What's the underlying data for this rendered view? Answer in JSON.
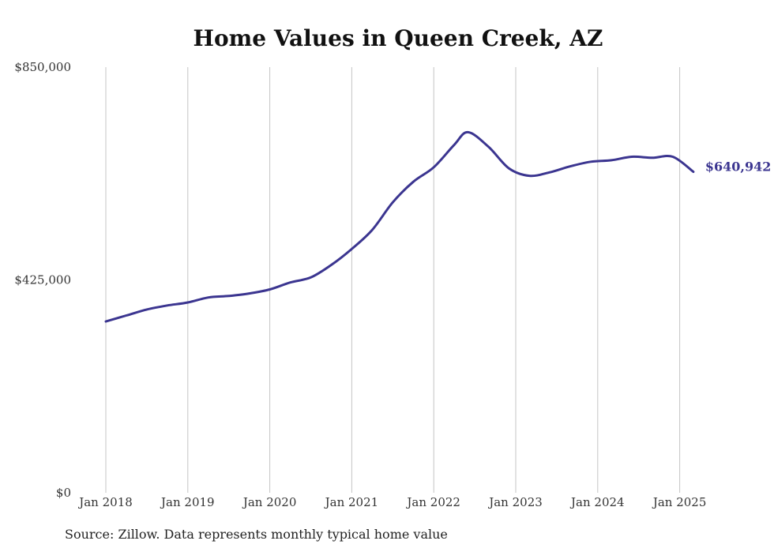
{
  "chart_data": {
    "type": "line",
    "title": "Home Values in Queen Creek, AZ",
    "xlabel": "",
    "ylabel": "",
    "ylim": [
      0,
      850000
    ],
    "y_ticks": [
      {
        "value": 0,
        "label": "$0"
      },
      {
        "value": 425000,
        "label": "$425,000"
      },
      {
        "value": 850000,
        "label": "$850,000"
      }
    ],
    "x_ticks": [
      {
        "value": "2018-01",
        "label": "Jan 2018"
      },
      {
        "value": "2019-01",
        "label": "Jan 2019"
      },
      {
        "value": "2020-01",
        "label": "Jan 2020"
      },
      {
        "value": "2021-01",
        "label": "Jan 2021"
      },
      {
        "value": "2022-01",
        "label": "Jan 2022"
      },
      {
        "value": "2023-01",
        "label": "Jan 2023"
      },
      {
        "value": "2024-01",
        "label": "Jan 2024"
      },
      {
        "value": "2025-01",
        "label": "Jan 2025"
      }
    ],
    "grid": "vertical",
    "legend": "none",
    "line_color": "#3b3590",
    "series": [
      {
        "x": [
          "2018-01",
          "2018-04",
          "2018-07",
          "2018-10",
          "2019-01",
          "2019-04",
          "2019-07",
          "2019-10",
          "2020-01",
          "2020-04",
          "2020-07",
          "2020-10",
          "2021-01",
          "2021-04",
          "2021-07",
          "2021-10",
          "2022-01",
          "2022-04",
          "2022-06",
          "2022-09",
          "2022-12",
          "2023-03",
          "2023-06",
          "2023-09",
          "2023-12",
          "2024-03",
          "2024-06",
          "2024-09",
          "2024-12",
          "2025-03"
        ],
        "values": [
          342000,
          354000,
          366000,
          374000,
          380000,
          390000,
          393000,
          398000,
          406000,
          420000,
          430000,
          455000,
          487000,
          525000,
          580000,
          621000,
          650000,
          695000,
          720000,
          691000,
          648000,
          633000,
          640000,
          652000,
          661000,
          664000,
          671000,
          669000,
          671000,
          640942
        ]
      }
    ],
    "annotations": [
      {
        "text": "$640,942",
        "color": "#3b3590",
        "anchor": "last-point"
      }
    ]
  },
  "source_note": "Source: Zillow. Data represents monthly typical home value"
}
